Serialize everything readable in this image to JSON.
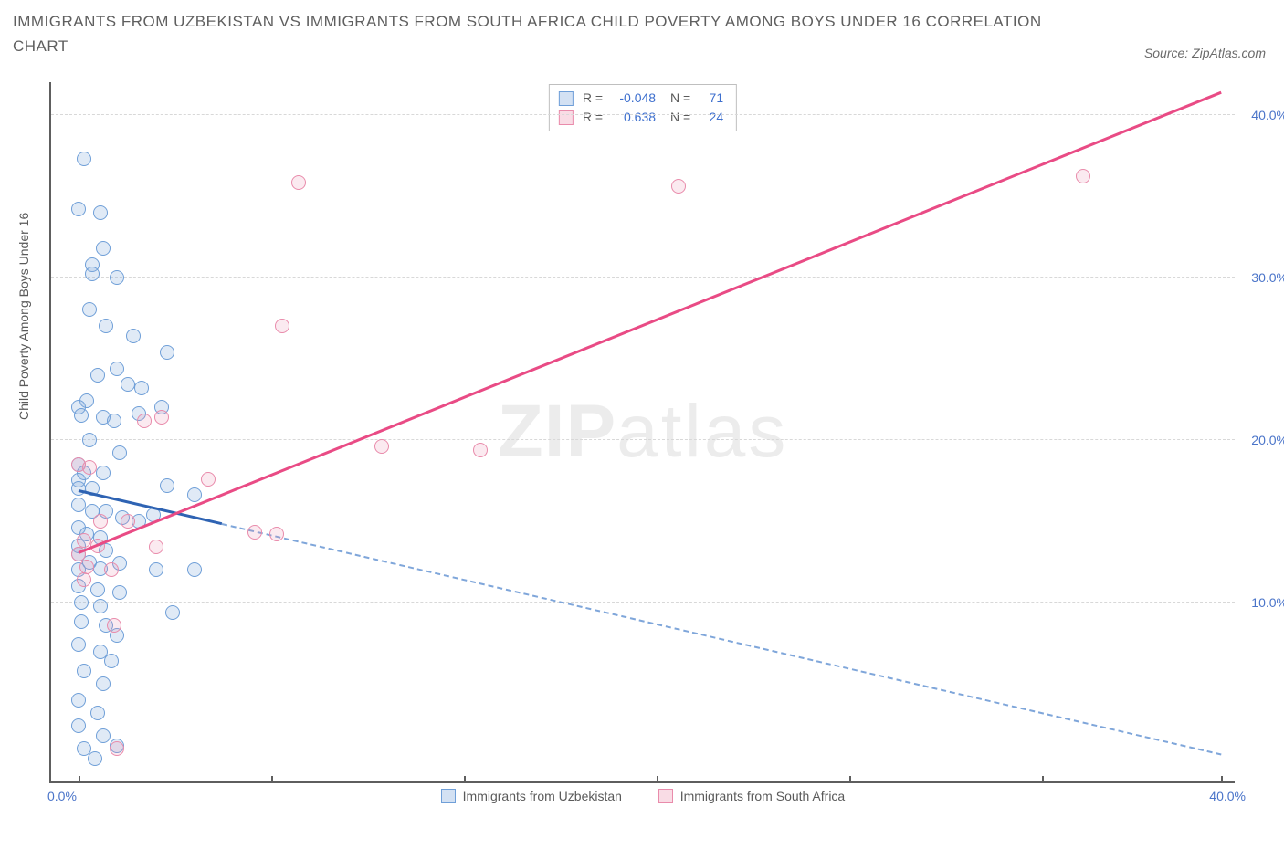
{
  "title": "IMMIGRANTS FROM UZBEKISTAN VS IMMIGRANTS FROM SOUTH AFRICA CHILD POVERTY AMONG BOYS UNDER 16 CORRELATION CHART",
  "source_label": "Source: ZipAtlas.com",
  "yaxis_title": "Child Poverty Among Boys Under 16",
  "watermark_a": "ZIP",
  "watermark_b": "atlas",
  "chart": {
    "type": "scatter",
    "background_color": "#ffffff",
    "axis_color": "#5e5e5e",
    "grid_color": "#d8d8d8",
    "tick_label_color": "#4a74c9",
    "label_fontsize": 14,
    "title_fontsize": 17,
    "xlim": [
      -1.0,
      42.0
    ],
    "ylim": [
      -1.0,
      42.0
    ],
    "yticks": [
      10,
      20,
      30,
      40
    ],
    "ytick_labels": [
      "10.0%",
      "20.0%",
      "30.0%",
      "40.0%"
    ],
    "xticks": [
      0,
      7,
      14,
      21,
      28,
      35,
      41.5
    ],
    "x_zero_label": "0.0%",
    "x_max_label": "40.0%",
    "marker_size": 16,
    "series": [
      {
        "name": "Immigrants from Uzbekistan",
        "key": "blue",
        "marker_fill": "rgba(130,170,220,0.25)",
        "marker_stroke": "#6f9fd8",
        "line_color": "#2e63b3",
        "trend": {
          "x1": 0.0,
          "y1": 16.8,
          "x2_solid": 5.2,
          "x2_total": 41.5,
          "y2": 0.6
        },
        "R": "-0.048",
        "N": "71",
        "points": [
          [
            0.2,
            37.3
          ],
          [
            0.0,
            34.2
          ],
          [
            0.8,
            34.0
          ],
          [
            0.9,
            31.8
          ],
          [
            0.5,
            30.8
          ],
          [
            0.5,
            30.2
          ],
          [
            1.4,
            30.0
          ],
          [
            0.4,
            28.0
          ],
          [
            1.0,
            27.0
          ],
          [
            2.0,
            26.4
          ],
          [
            3.2,
            25.4
          ],
          [
            1.4,
            24.4
          ],
          [
            0.7,
            24.0
          ],
          [
            1.8,
            23.4
          ],
          [
            2.3,
            23.2
          ],
          [
            0.3,
            22.4
          ],
          [
            0.0,
            22.0
          ],
          [
            0.1,
            21.5
          ],
          [
            0.9,
            21.4
          ],
          [
            1.3,
            21.2
          ],
          [
            2.2,
            21.6
          ],
          [
            3.0,
            22.0
          ],
          [
            0.4,
            20.0
          ],
          [
            1.5,
            19.2
          ],
          [
            0.0,
            18.5
          ],
          [
            0.2,
            18.0
          ],
          [
            0.9,
            18.0
          ],
          [
            0.0,
            17.5
          ],
          [
            0.0,
            17.0
          ],
          [
            0.5,
            17.0
          ],
          [
            3.2,
            17.2
          ],
          [
            4.2,
            16.6
          ],
          [
            0.0,
            16.0
          ],
          [
            0.5,
            15.6
          ],
          [
            1.0,
            15.6
          ],
          [
            1.6,
            15.2
          ],
          [
            2.2,
            15.0
          ],
          [
            2.7,
            15.4
          ],
          [
            0.0,
            14.6
          ],
          [
            0.3,
            14.2
          ],
          [
            0.8,
            14.0
          ],
          [
            0.0,
            13.5
          ],
          [
            0.0,
            13.0
          ],
          [
            1.0,
            13.2
          ],
          [
            0.4,
            12.5
          ],
          [
            0.0,
            12.0
          ],
          [
            0.8,
            12.1
          ],
          [
            1.5,
            12.4
          ],
          [
            2.8,
            12.0
          ],
          [
            4.2,
            12.0
          ],
          [
            0.0,
            11.0
          ],
          [
            0.7,
            10.8
          ],
          [
            1.5,
            10.6
          ],
          [
            0.1,
            10.0
          ],
          [
            0.8,
            9.8
          ],
          [
            3.4,
            9.4
          ],
          [
            0.1,
            8.8
          ],
          [
            1.0,
            8.6
          ],
          [
            1.4,
            8.0
          ],
          [
            0.0,
            7.4
          ],
          [
            0.8,
            7.0
          ],
          [
            1.2,
            6.4
          ],
          [
            0.2,
            5.8
          ],
          [
            0.9,
            5.0
          ],
          [
            0.0,
            4.0
          ],
          [
            0.7,
            3.2
          ],
          [
            0.0,
            2.4
          ],
          [
            0.9,
            1.8
          ],
          [
            0.2,
            1.0
          ],
          [
            0.6,
            0.4
          ],
          [
            1.4,
            1.2
          ]
        ]
      },
      {
        "name": "Immigrants from South Africa",
        "key": "pink",
        "marker_fill": "rgba(235,140,170,0.18)",
        "marker_stroke": "#e98bab",
        "line_color": "#e94b85",
        "trend": {
          "x1": 0.0,
          "y1": 13.0,
          "x2_solid": 41.5,
          "x2_total": 41.5,
          "y2": 41.3
        },
        "R": "0.638",
        "N": "24",
        "points": [
          [
            8.0,
            35.8
          ],
          [
            21.8,
            35.6
          ],
          [
            36.5,
            36.2
          ],
          [
            7.4,
            27.0
          ],
          [
            3.0,
            21.4
          ],
          [
            2.4,
            21.2
          ],
          [
            11.0,
            19.6
          ],
          [
            14.6,
            19.4
          ],
          [
            0.0,
            18.5
          ],
          [
            0.4,
            18.3
          ],
          [
            4.7,
            17.6
          ],
          [
            0.8,
            15.0
          ],
          [
            1.8,
            15.0
          ],
          [
            6.4,
            14.3
          ],
          [
            7.2,
            14.2
          ],
          [
            0.2,
            13.8
          ],
          [
            0.7,
            13.5
          ],
          [
            2.8,
            13.4
          ],
          [
            0.3,
            12.2
          ],
          [
            1.2,
            12.0
          ],
          [
            0.2,
            11.4
          ],
          [
            1.3,
            8.6
          ],
          [
            1.4,
            1.0
          ],
          [
            0.0,
            13.0
          ]
        ]
      }
    ]
  },
  "stats_box": {
    "rows": [
      {
        "swatch": "blue",
        "R_label": "R =",
        "R": "-0.048",
        "N_label": "N =",
        "N": "71"
      },
      {
        "swatch": "pink",
        "R_label": "R =",
        "R": "0.638",
        "N_label": "N =",
        "N": "24"
      }
    ]
  },
  "legend_bottom": {
    "items": [
      {
        "swatch": "blue",
        "label": "Immigrants from Uzbekistan"
      },
      {
        "swatch": "pink",
        "label": "Immigrants from South Africa"
      }
    ]
  }
}
